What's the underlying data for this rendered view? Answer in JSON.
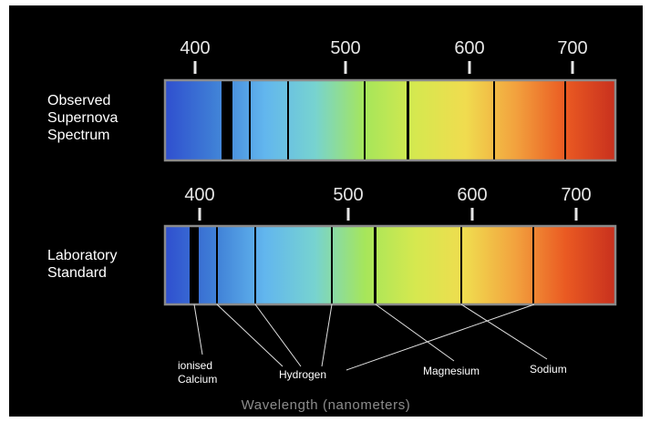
{
  "title": "",
  "axis_title": "Wavelength (nanometers)",
  "spectra": [
    {
      "id": "observed",
      "label": "Observed\nSupernova\nSpectrum",
      "ticks": [
        "400",
        "500",
        "600",
        "700"
      ]
    },
    {
      "id": "laboratory",
      "label": "Laboratory\nStandard",
      "ticks": [
        "400",
        "500",
        "600",
        "700"
      ]
    }
  ],
  "line_labels": [
    {
      "id": "ionised-calcium",
      "text": "ionised\nCalcium"
    },
    {
      "id": "hydrogen",
      "text": "Hydrogen"
    },
    {
      "id": "magnesium",
      "text": "Magnesium"
    },
    {
      "id": "sodium",
      "text": "Sodium"
    }
  ],
  "colors": {
    "background": "#000000",
    "frame": "#8a8a8a",
    "leader_line": "#e0e0e0",
    "spectrum": [
      "#2f4fcf",
      "#3f7fd6",
      "#62b6ee",
      "#77d3d0",
      "#a6e65a",
      "#d6e84f",
      "#f0dc4f",
      "#f2a23e",
      "#ea5a22",
      "#c8301e"
    ]
  }
}
